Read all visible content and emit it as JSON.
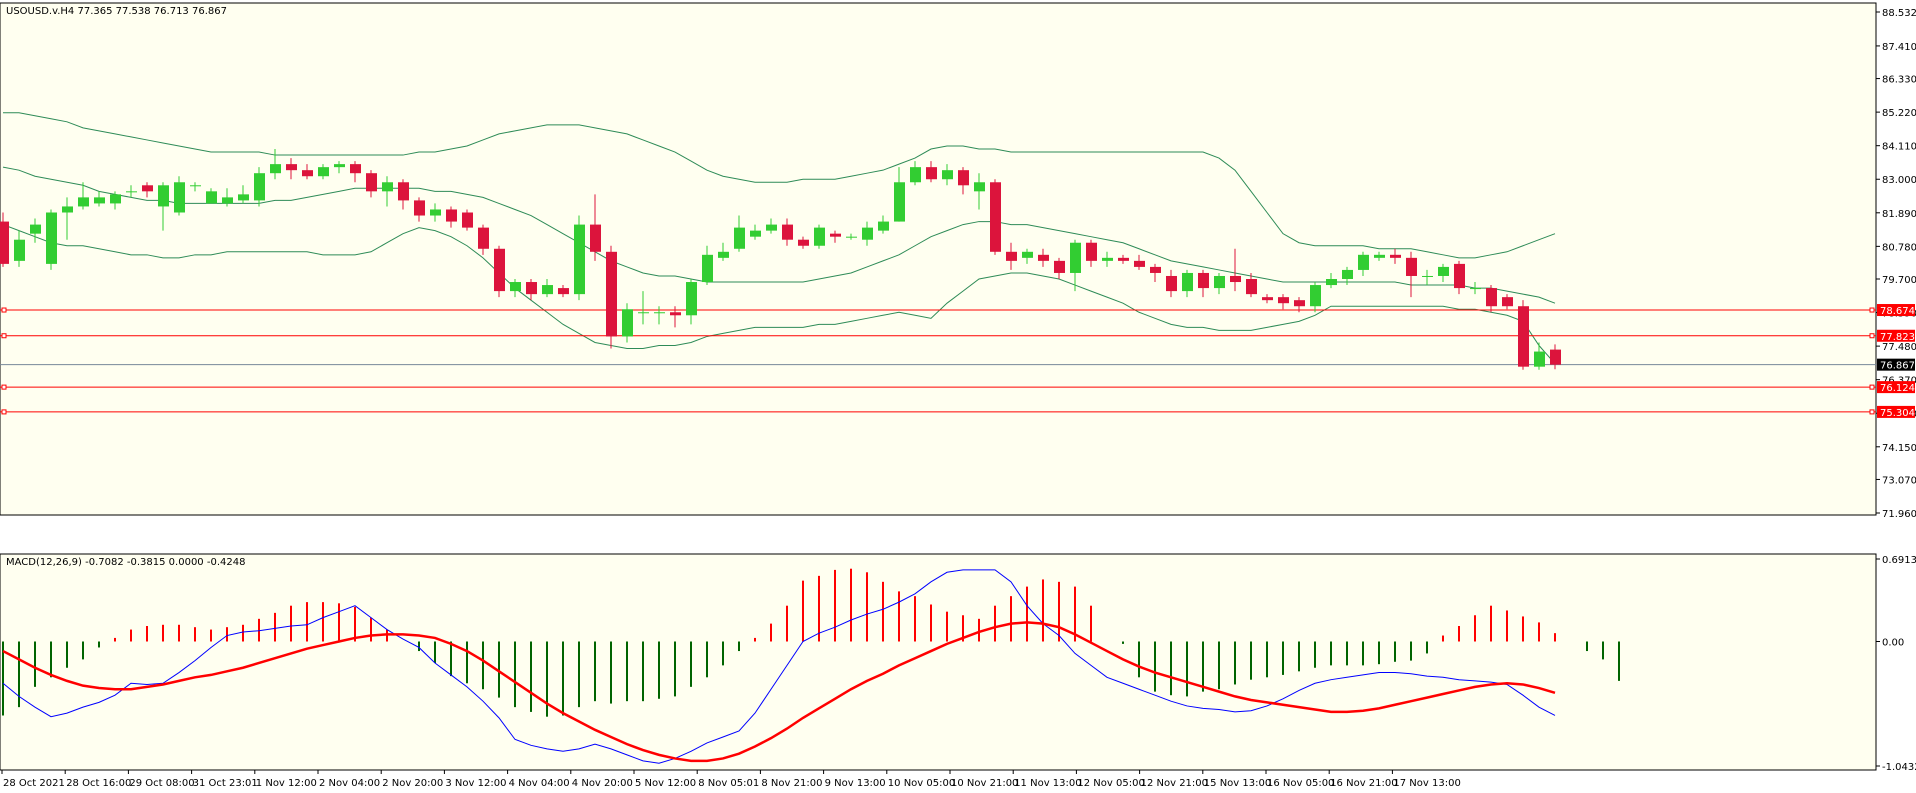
{
  "chart_data": {
    "type": "candlestick",
    "symbol_line": "USOUSD.v.H4  77.365 77.538 76.713 76.867",
    "price_axis": {
      "ylim": [
        71.96,
        88.532
      ],
      "ticks": [
        "88.532",
        "87.410",
        "86.330",
        "85.220",
        "84.110",
        "83.000",
        "81.890",
        "80.780",
        "79.700",
        "78.590",
        "77.480",
        "76.370",
        "75.260",
        "74.150",
        "73.070",
        "71.960"
      ]
    },
    "time_axis": {
      "labels": [
        "28 Oct 2021",
        "28 Oct 16:00",
        "29 Oct 08:00",
        "31 Oct 23:01",
        "1 Nov 12:00",
        "2 Nov 04:00",
        "2 Nov 20:00",
        "3 Nov 12:00",
        "4 Nov 04:00",
        "4 Nov 20:00",
        "5 Nov 12:00",
        "8 Nov 05:01",
        "8 Nov 21:00",
        "9 Nov 13:00",
        "10 Nov 05:00",
        "10 Nov 21:00",
        "11 Nov 13:00",
        "12 Nov 05:00",
        "12 Nov 21:00",
        "15 Nov 13:00",
        "16 Nov 05:00",
        "16 Nov 21:00",
        "17 Nov 13:00"
      ]
    },
    "candles": [
      [
        81.6,
        80.2,
        81.9,
        80.1
      ],
      [
        80.3,
        81.0,
        81.3,
        80.1
      ],
      [
        81.2,
        81.5,
        81.7,
        80.9
      ],
      [
        80.2,
        81.9,
        82.0,
        80.0
      ],
      [
        81.9,
        82.1,
        82.4,
        81.0
      ],
      [
        82.1,
        82.4,
        82.9,
        82.0
      ],
      [
        82.2,
        82.4,
        82.6,
        82.1
      ],
      [
        82.2,
        82.5,
        82.6,
        82.0
      ],
      [
        82.6,
        82.6,
        82.8,
        82.4
      ],
      [
        82.8,
        82.6,
        82.9,
        82.4
      ],
      [
        82.1,
        82.8,
        82.9,
        81.3
      ],
      [
        81.9,
        82.9,
        83.1,
        81.8
      ],
      [
        82.8,
        82.8,
        82.9,
        82.6
      ],
      [
        82.2,
        82.6,
        82.7,
        82.2
      ],
      [
        82.2,
        82.4,
        82.7,
        82.1
      ],
      [
        82.3,
        82.5,
        82.8,
        82.2
      ],
      [
        82.3,
        83.2,
        83.4,
        82.1
      ],
      [
        83.2,
        83.5,
        84.0,
        83.0
      ],
      [
        83.5,
        83.3,
        83.7,
        83.0
      ],
      [
        83.3,
        83.1,
        83.5,
        83.0
      ],
      [
        83.1,
        83.4,
        83.5,
        83.0
      ],
      [
        83.4,
        83.5,
        83.6,
        83.2
      ],
      [
        83.5,
        83.2,
        83.6,
        82.9
      ],
      [
        83.2,
        82.6,
        83.3,
        82.4
      ],
      [
        82.6,
        82.9,
        83.1,
        82.1
      ],
      [
        82.9,
        82.3,
        83.0,
        82.0
      ],
      [
        82.3,
        81.8,
        82.4,
        81.6
      ],
      [
        81.8,
        82.0,
        82.2,
        81.6
      ],
      [
        82.0,
        81.6,
        82.1,
        81.4
      ],
      [
        81.9,
        81.4,
        82.0,
        81.3
      ],
      [
        81.4,
        80.7,
        81.5,
        80.5
      ],
      [
        80.7,
        79.3,
        80.8,
        79.1
      ],
      [
        79.3,
        79.6,
        79.7,
        79.1
      ],
      [
        79.6,
        79.2,
        79.7,
        79.0
      ],
      [
        79.2,
        79.5,
        79.7,
        79.1
      ],
      [
        79.4,
        79.2,
        79.5,
        79.1
      ],
      [
        79.2,
        81.5,
        81.8,
        79.0
      ],
      [
        81.5,
        80.6,
        82.5,
        80.3
      ],
      [
        80.6,
        77.8,
        80.8,
        77.4
      ],
      [
        77.8,
        78.7,
        78.9,
        77.6
      ],
      [
        78.6,
        78.6,
        79.3,
        78.2
      ],
      [
        78.6,
        78.6,
        78.8,
        78.2
      ],
      [
        78.6,
        78.5,
        78.8,
        78.1
      ],
      [
        78.5,
        79.6,
        79.7,
        78.2
      ],
      [
        79.6,
        80.5,
        80.8,
        79.5
      ],
      [
        80.4,
        80.6,
        80.9,
        80.3
      ],
      [
        80.7,
        81.4,
        81.8,
        80.6
      ],
      [
        81.1,
        81.3,
        81.5,
        81.0
      ],
      [
        81.3,
        81.5,
        81.7,
        81.2
      ],
      [
        81.5,
        81.0,
        81.7,
        80.8
      ],
      [
        81.0,
        80.8,
        81.1,
        80.7
      ],
      [
        80.8,
        81.4,
        81.5,
        80.7
      ],
      [
        81.2,
        81.1,
        81.3,
        80.9
      ],
      [
        81.1,
        81.1,
        81.2,
        81.0
      ],
      [
        81.0,
        81.4,
        81.6,
        80.8
      ],
      [
        81.3,
        81.6,
        81.8,
        81.2
      ],
      [
        81.6,
        82.9,
        83.4,
        81.6
      ],
      [
        82.9,
        83.4,
        83.6,
        82.8
      ],
      [
        83.4,
        83.0,
        83.6,
        82.9
      ],
      [
        83.0,
        83.3,
        83.5,
        82.8
      ],
      [
        83.3,
        82.8,
        83.4,
        82.5
      ],
      [
        82.6,
        82.9,
        83.2,
        82.0
      ],
      [
        82.9,
        80.6,
        83.0,
        80.5
      ],
      [
        80.6,
        80.3,
        80.9,
        80.0
      ],
      [
        80.4,
        80.6,
        80.7,
        80.2
      ],
      [
        80.5,
        80.3,
        80.7,
        80.1
      ],
      [
        80.3,
        79.9,
        80.4,
        79.7
      ],
      [
        79.9,
        80.9,
        81.0,
        79.3
      ],
      [
        80.9,
        80.3,
        81.0,
        80.1
      ],
      [
        80.3,
        80.4,
        80.6,
        80.1
      ],
      [
        80.4,
        80.3,
        80.5,
        80.2
      ],
      [
        80.3,
        80.1,
        80.5,
        80.0
      ],
      [
        80.1,
        79.9,
        80.2,
        79.6
      ],
      [
        79.8,
        79.3,
        80.0,
        79.1
      ],
      [
        79.3,
        79.9,
        80.0,
        79.1
      ],
      [
        79.9,
        79.4,
        80.0,
        79.1
      ],
      [
        79.4,
        79.8,
        79.9,
        79.2
      ],
      [
        79.8,
        79.6,
        80.7,
        79.3
      ],
      [
        79.7,
        79.2,
        79.9,
        79.1
      ],
      [
        79.1,
        79.0,
        79.2,
        78.9
      ],
      [
        79.1,
        78.9,
        79.2,
        78.7
      ],
      [
        79.0,
        78.8,
        79.1,
        78.6
      ],
      [
        78.8,
        79.5,
        79.6,
        78.6
      ],
      [
        79.5,
        79.7,
        79.9,
        79.4
      ],
      [
        79.7,
        80.0,
        80.1,
        79.5
      ],
      [
        80.0,
        80.5,
        80.6,
        79.8
      ],
      [
        80.4,
        80.5,
        80.6,
        80.3
      ],
      [
        80.5,
        80.4,
        80.7,
        80.2
      ],
      [
        80.4,
        79.8,
        80.6,
        79.1
      ],
      [
        79.8,
        79.8,
        80.0,
        79.5
      ],
      [
        79.8,
        80.1,
        80.2,
        79.6
      ],
      [
        80.2,
        79.4,
        80.3,
        79.2
      ],
      [
        79.4,
        79.4,
        79.6,
        79.2
      ],
      [
        79.4,
        78.8,
        79.5,
        78.6
      ],
      [
        79.1,
        78.8,
        79.2,
        78.7
      ],
      [
        78.8,
        76.8,
        79.0,
        76.7
      ],
      [
        76.8,
        77.3,
        77.6,
        76.7
      ],
      [
        77.365,
        76.867,
        77.538,
        76.713
      ]
    ],
    "bollinger": {
      "upper": [
        85.2,
        85.2,
        85.1,
        85.0,
        84.9,
        84.7,
        84.6,
        84.5,
        84.4,
        84.3,
        84.2,
        84.1,
        84.0,
        83.9,
        83.9,
        83.9,
        83.9,
        83.8,
        83.8,
        83.8,
        83.8,
        83.8,
        83.8,
        83.8,
        83.8,
        83.8,
        83.9,
        83.9,
        84.0,
        84.1,
        84.3,
        84.5,
        84.6,
        84.7,
        84.8,
        84.8,
        84.8,
        84.7,
        84.6,
        84.5,
        84.3,
        84.1,
        83.9,
        83.6,
        83.3,
        83.1,
        83.0,
        82.9,
        82.9,
        82.9,
        83.0,
        83.0,
        83.0,
        83.1,
        83.2,
        83.3,
        83.5,
        83.7,
        84.0,
        84.1,
        84.1,
        84.0,
        84.0,
        83.9,
        83.9,
        83.9,
        83.9,
        83.9,
        83.9,
        83.9,
        83.9,
        83.9,
        83.9,
        83.9,
        83.9,
        83.9,
        83.7,
        83.3,
        82.6,
        81.9,
        81.2,
        80.9,
        80.8,
        80.8,
        80.8,
        80.8,
        80.7,
        80.7,
        80.7,
        80.6,
        80.5,
        80.4,
        80.4,
        80.5,
        80.6,
        80.8,
        81.0,
        81.2
      ],
      "middle": [
        83.4,
        83.3,
        83.1,
        83.0,
        82.9,
        82.8,
        82.6,
        82.5,
        82.4,
        82.3,
        82.3,
        82.2,
        82.2,
        82.2,
        82.2,
        82.2,
        82.2,
        82.3,
        82.3,
        82.4,
        82.5,
        82.6,
        82.7,
        82.7,
        82.7,
        82.7,
        82.7,
        82.6,
        82.6,
        82.5,
        82.4,
        82.2,
        82.0,
        81.8,
        81.5,
        81.2,
        80.9,
        80.6,
        80.3,
        80.1,
        79.9,
        79.8,
        79.8,
        79.7,
        79.6,
        79.6,
        79.6,
        79.6,
        79.6,
        79.6,
        79.6,
        79.7,
        79.8,
        79.9,
        80.1,
        80.3,
        80.5,
        80.8,
        81.1,
        81.3,
        81.5,
        81.6,
        81.6,
        81.5,
        81.5,
        81.4,
        81.3,
        81.2,
        81.1,
        81.0,
        80.9,
        80.7,
        80.5,
        80.3,
        80.2,
        80.1,
        80.0,
        79.9,
        79.8,
        79.7,
        79.6,
        79.6,
        79.6,
        79.6,
        79.6,
        79.6,
        79.6,
        79.6,
        79.5,
        79.5,
        79.5,
        79.5,
        79.4,
        79.4,
        79.3,
        79.2,
        79.1,
        78.9
      ],
      "lower": [
        81.5,
        81.3,
        81.1,
        80.9,
        80.8,
        80.8,
        80.7,
        80.6,
        80.5,
        80.5,
        80.4,
        80.4,
        80.5,
        80.5,
        80.6,
        80.6,
        80.6,
        80.6,
        80.6,
        80.6,
        80.5,
        80.5,
        80.5,
        80.6,
        80.9,
        81.2,
        81.4,
        81.3,
        81.1,
        80.8,
        80.4,
        79.9,
        79.4,
        79.0,
        78.6,
        78.2,
        77.9,
        77.6,
        77.5,
        77.4,
        77.4,
        77.5,
        77.5,
        77.6,
        77.8,
        77.9,
        78.0,
        78.1,
        78.1,
        78.1,
        78.1,
        78.2,
        78.2,
        78.3,
        78.4,
        78.5,
        78.6,
        78.5,
        78.4,
        78.9,
        79.3,
        79.7,
        79.8,
        79.9,
        79.9,
        79.8,
        79.7,
        79.5,
        79.3,
        79.1,
        78.9,
        78.6,
        78.4,
        78.2,
        78.1,
        78.1,
        78.0,
        78.0,
        78.0,
        78.1,
        78.2,
        78.3,
        78.5,
        78.8,
        78.8,
        78.8,
        78.8,
        78.8,
        78.8,
        78.8,
        78.8,
        78.7,
        78.7,
        78.6,
        78.5,
        78.3,
        77.5,
        76.9
      ]
    },
    "horizontal_levels": [
      {
        "label": "78.674",
        "value": 78.674
      },
      {
        "label": "77.823",
        "value": 77.823
      },
      {
        "label": "76.124",
        "value": 76.124
      },
      {
        "label": "75.304",
        "value": 75.304
      }
    ],
    "current_price": {
      "label": "76.867",
      "value": 76.867
    },
    "macd": {
      "header": "MACD(12,26,9) -0.7082 -0.3815 0.0000 -0.4248",
      "ylim": [
        -1.0432,
        0.6913
      ],
      "ticks": [
        "0.6913",
        "0.00",
        "-1.0432"
      ],
      "histogram": [
        -0.62,
        -0.55,
        -0.38,
        -0.3,
        -0.22,
        -0.15,
        -0.05,
        0.03,
        0.1,
        0.13,
        0.14,
        0.14,
        0.12,
        0.1,
        0.12,
        0.14,
        0.19,
        0.24,
        0.3,
        0.33,
        0.33,
        0.32,
        0.29,
        0.2,
        0.1,
        0.0,
        -0.08,
        -0.18,
        -0.29,
        -0.35,
        -0.4,
        -0.47,
        -0.55,
        -0.59,
        -0.63,
        -0.62,
        -0.55,
        -0.5,
        -0.52,
        -0.5,
        -0.5,
        -0.48,
        -0.46,
        -0.38,
        -0.3,
        -0.2,
        -0.08,
        0.03,
        0.15,
        0.3,
        0.51,
        0.55,
        0.6,
        0.61,
        0.58,
        0.5,
        0.42,
        0.38,
        0.31,
        0.25,
        0.22,
        0.19,
        0.3,
        0.38,
        0.46,
        0.52,
        0.5,
        0.46,
        0.3,
        0.0,
        -0.02,
        -0.3,
        -0.42,
        -0.45,
        -0.46,
        -0.42,
        -0.4,
        -0.36,
        -0.32,
        -0.3,
        -0.28,
        -0.25,
        -0.22,
        -0.2,
        -0.2,
        -0.2,
        -0.19,
        -0.17,
        -0.16,
        -0.1,
        0.05,
        0.13,
        0.22,
        0.3,
        0.26,
        0.21,
        0.16,
        0.07,
        0.0,
        -0.08,
        -0.15,
        -0.33
      ],
      "macd_line": [
        -0.35,
        -0.46,
        -0.55,
        -0.63,
        -0.6,
        -0.55,
        -0.51,
        -0.45,
        -0.35,
        -0.36,
        -0.35,
        -0.26,
        -0.16,
        -0.05,
        0.05,
        0.08,
        0.09,
        0.11,
        0.13,
        0.14,
        0.2,
        0.25,
        0.3,
        0.2,
        0.1,
        0.02,
        -0.05,
        -0.18,
        -0.28,
        -0.38,
        -0.5,
        -0.64,
        -0.82,
        -0.87,
        -0.9,
        -0.92,
        -0.9,
        -0.86,
        -0.9,
        -0.95,
        -1.0,
        -1.02,
        -0.98,
        -0.92,
        -0.85,
        -0.8,
        -0.75,
        -0.6,
        -0.4,
        -0.2,
        0.0,
        0.07,
        0.12,
        0.18,
        0.23,
        0.27,
        0.33,
        0.4,
        0.5,
        0.58,
        0.6,
        0.6,
        0.6,
        0.5,
        0.3,
        0.15,
        0.05,
        -0.1,
        -0.2,
        -0.3,
        -0.35,
        -0.4,
        -0.45,
        -0.5,
        -0.54,
        -0.56,
        -0.57,
        -0.59,
        -0.58,
        -0.54,
        -0.48,
        -0.41,
        -0.35,
        -0.32,
        -0.3,
        -0.28,
        -0.26,
        -0.26,
        -0.27,
        -0.29,
        -0.3,
        -0.32,
        -0.33,
        -0.34,
        -0.36,
        -0.45,
        -0.55,
        -0.62
      ],
      "signal_line": [
        -0.08,
        -0.15,
        -0.22,
        -0.28,
        -0.33,
        -0.37,
        -0.39,
        -0.4,
        -0.4,
        -0.38,
        -0.36,
        -0.33,
        -0.3,
        -0.28,
        -0.25,
        -0.22,
        -0.18,
        -0.14,
        -0.1,
        -0.06,
        -0.03,
        0.0,
        0.03,
        0.05,
        0.06,
        0.06,
        0.05,
        0.03,
        -0.02,
        -0.08,
        -0.16,
        -0.25,
        -0.34,
        -0.43,
        -0.52,
        -0.6,
        -0.67,
        -0.74,
        -0.8,
        -0.86,
        -0.91,
        -0.95,
        -0.98,
        -1.0,
        -1.0,
        -0.98,
        -0.94,
        -0.88,
        -0.81,
        -0.73,
        -0.64,
        -0.56,
        -0.48,
        -0.4,
        -0.33,
        -0.27,
        -0.2,
        -0.14,
        -0.08,
        -0.02,
        0.03,
        0.08,
        0.12,
        0.15,
        0.16,
        0.15,
        0.12,
        0.06,
        -0.01,
        -0.08,
        -0.15,
        -0.21,
        -0.26,
        -0.3,
        -0.34,
        -0.38,
        -0.42,
        -0.46,
        -0.49,
        -0.51,
        -0.53,
        -0.55,
        -0.57,
        -0.59,
        -0.59,
        -0.58,
        -0.56,
        -0.53,
        -0.5,
        -0.47,
        -0.44,
        -0.41,
        -0.38,
        -0.36,
        -0.35,
        -0.36,
        -0.39,
        -0.43
      ]
    },
    "colors": {
      "background": "#fffff0",
      "bull": "#32cd32",
      "bear": "#dc143c",
      "bands": "#2e8b57",
      "level_line": "#ff0000",
      "price_line": "#778899",
      "macd_hist_pos": "#ff0000",
      "macd_hist_neg": "#006400",
      "macd_line": "#0000ff",
      "signal_line": "#ff0000"
    },
    "grid": false
  }
}
